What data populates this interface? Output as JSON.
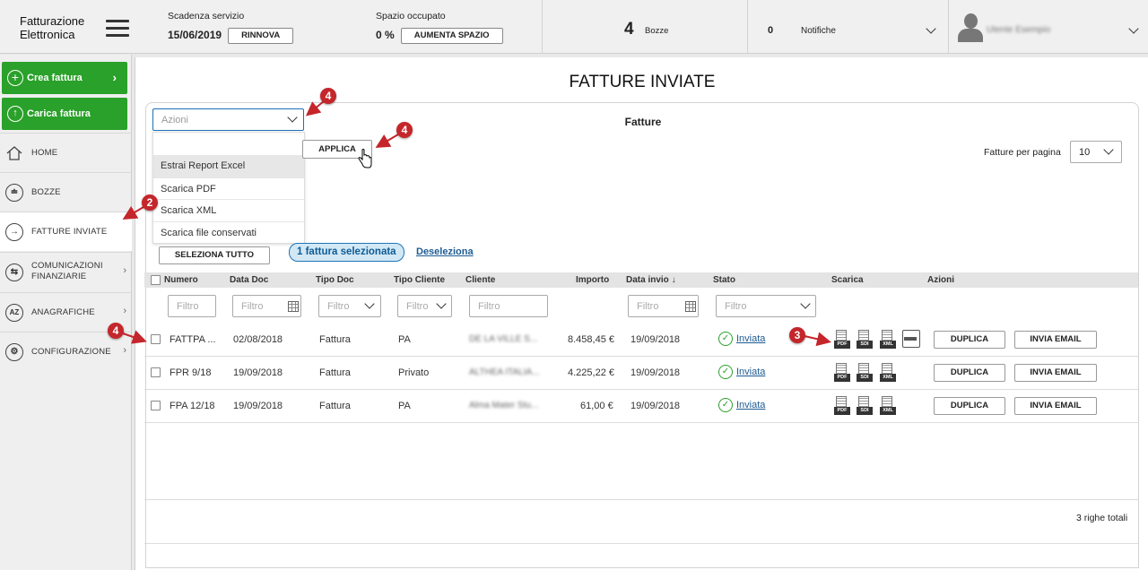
{
  "header": {
    "brand_line1": "Fatturazione",
    "brand_line2": "Elettronica",
    "scadenza_label": "Scadenza servizio",
    "scadenza_value": "15/06/2019",
    "rinnova_label": "RINNOVA",
    "spazio_label": "Spazio occupato",
    "spazio_value": "0 %",
    "aumenta_label": "AUMENTA SPAZIO",
    "bozze_count": "4",
    "bozze_label": "Bozze",
    "notifiche_count": "0",
    "notifiche_label": "Notifiche",
    "user_name": "Utente Esempio"
  },
  "sidebar": {
    "crea_label": "Crea fattura",
    "carica_label": "Carica fattura",
    "items": [
      {
        "label": "HOME",
        "icon": "home-icon"
      },
      {
        "label": "BOZZE",
        "icon": "drafts-icon"
      },
      {
        "label": "FATTURE INVIATE",
        "icon": "arrow-right-circle-icon"
      },
      {
        "label": "COMUNICAZIONI FINANZIARIE",
        "icon": "exchange-icon"
      },
      {
        "label": "ANAGRAFICHE",
        "icon": "az-icon"
      },
      {
        "label": "CONFIGURAZIONE",
        "icon": "gear-icon"
      }
    ]
  },
  "main": {
    "page_title": "FATTURE INVIATE",
    "card_title": "Fatture",
    "azioni_placeholder": "Azioni",
    "azioni_options": [
      "Estrai Report Excel",
      "Scarica PDF",
      "Scarica XML",
      "Scarica file conservati"
    ],
    "applica_label": "APPLICA",
    "fatture_per_pagina_label": "Fatture per pagina",
    "fatture_per_pagina_value": "10",
    "seleziona_tutto_label": "SELEZIONA TUTTO",
    "selected_badge": "1 fattura selezionata",
    "deseleziona_label": "Deseleziona",
    "filter_placeholder": "Filtro",
    "columns": [
      "Numero",
      "Data Doc",
      "Tipo Doc",
      "Tipo Cliente",
      "Cliente",
      "Importo",
      "Data invio ↓",
      "Stato",
      "Scarica",
      "Azioni"
    ],
    "rows": [
      {
        "numero": "FATTPA ...",
        "data_doc": "02/08/2018",
        "tipo_doc": "Fattura",
        "tipo_cliente": "PA",
        "cliente": "DE LA VILLE S...",
        "importo": "8.458,45 €",
        "data_invio": "19/09/2018",
        "stato": "Inviata"
      },
      {
        "numero": "FPR 9/18",
        "data_doc": "19/09/2018",
        "tipo_doc": "Fattura",
        "tipo_cliente": "Privato",
        "cliente": "ALTHEA ITALIA...",
        "importo": "4.225,22 €",
        "data_invio": "19/09/2018",
        "stato": "Inviata"
      },
      {
        "numero": "FPA 12/18",
        "data_doc": "19/09/2018",
        "tipo_doc": "Fattura",
        "tipo_cliente": "PA",
        "cliente": "Alma Mater Stu...",
        "importo": "61,00 €",
        "data_invio": "19/09/2018",
        "stato": "Inviata"
      }
    ],
    "download_tags": [
      "PDF",
      "SDI",
      "XML"
    ],
    "duplica_label": "DUPLICA",
    "invia_email_label": "INVIA EMAIL",
    "totals": "3 righe totali"
  },
  "annotations": [
    "4",
    "4",
    "2",
    "4",
    "3"
  ],
  "colors": {
    "accent_green": "#2aa12a",
    "link_blue": "#1d5b92",
    "marker_red": "#c4262b"
  }
}
